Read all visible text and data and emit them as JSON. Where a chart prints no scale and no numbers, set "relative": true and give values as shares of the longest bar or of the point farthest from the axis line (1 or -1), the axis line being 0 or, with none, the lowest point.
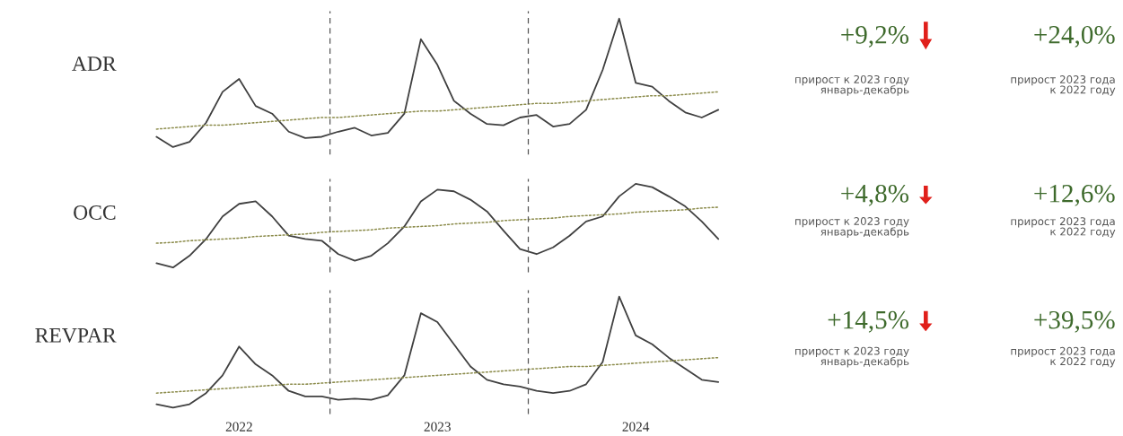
{
  "chart_data": [
    {
      "type": "line",
      "title": "ADR",
      "relative": true,
      "categories": [
        null,
        null,
        null,
        null,
        null,
        null,
        null,
        null,
        null,
        null,
        null,
        null,
        null,
        null,
        null,
        null,
        null,
        null,
        null,
        null,
        null,
        null,
        null,
        null,
        null,
        null,
        null,
        null,
        null,
        null,
        null,
        null,
        null,
        null,
        null
      ],
      "series": [
        {
          "color": "#404040",
          "line_style": "solid",
          "values": [
            0.08,
            0,
            0.04,
            0.19,
            0.43,
            0.53,
            0.32,
            0.26,
            0.12,
            0.07,
            0.08,
            0.12,
            0.15,
            0.09,
            0.11,
            0.26,
            0.84,
            0.64,
            0.36,
            0.26,
            0.18,
            0.17,
            0.23,
            0.25,
            0.16,
            0.18,
            0.29,
            0.6,
            1,
            0.5,
            0.47,
            0.36,
            0.27,
            0.23,
            0.29
          ]
        },
        {
          "type": "line",
          "color": "#8c8c4c",
          "line_style": "dotted",
          "values": [
            0.14,
            0.15,
            0.16,
            0.17,
            0.17,
            0.18,
            0.19,
            0.2,
            0.21,
            0.22,
            0.23,
            0.23,
            0.24,
            0.25,
            0.26,
            0.27,
            0.28,
            0.28,
            0.29,
            0.3,
            0.31,
            0.32,
            0.33,
            0.34,
            0.34,
            0.35,
            0.36,
            0.37,
            0.38,
            0.39,
            0.4,
            0.4,
            0.41,
            0.42,
            0.43
          ]
        }
      ]
    },
    {
      "type": "other",
      "annotations": [
        "+9,2%",
        "прирост к 2023 году\nянварь-декабрь",
        "+24,0%",
        "прирост 2023 года\nк 2022 году"
      ]
    },
    {
      "type": "line",
      "title": "OCC",
      "relative": true,
      "categories": [
        null,
        null,
        null,
        null,
        null,
        null,
        null,
        null,
        null,
        null,
        null,
        null,
        null,
        null,
        null,
        null,
        null,
        null,
        null,
        null,
        null,
        null,
        null,
        null,
        null,
        null,
        null,
        null,
        null,
        null,
        null,
        null,
        null,
        null,
        null
      ],
      "series": [
        {
          "color": "#404040",
          "line_style": "solid",
          "values": [
            0.05,
            0,
            0.14,
            0.34,
            0.61,
            0.76,
            0.79,
            0.61,
            0.38,
            0.34,
            0.32,
            0.16,
            0.08,
            0.14,
            0.29,
            0.49,
            0.79,
            0.93,
            0.91,
            0.81,
            0.67,
            0.44,
            0.22,
            0.16,
            0.24,
            0.38,
            0.55,
            0.61,
            0.85,
            1,
            0.96,
            0.85,
            0.73,
            0.55,
            0.34
          ]
        },
        {
          "type": "line",
          "color": "#8c8c4c",
          "line_style": "dotted",
          "values": [
            0.29,
            0.3,
            0.32,
            0.33,
            0.34,
            0.35,
            0.37,
            0.38,
            0.39,
            0.4,
            0.42,
            0.43,
            0.44,
            0.45,
            0.47,
            0.48,
            0.49,
            0.5,
            0.52,
            0.53,
            0.54,
            0.56,
            0.57,
            0.58,
            0.59,
            0.61,
            0.62,
            0.63,
            0.64,
            0.66,
            0.67,
            0.68,
            0.69,
            0.71,
            0.72
          ]
        }
      ]
    },
    {
      "type": "other",
      "annotations": [
        "+4,8%",
        "прирост к 2023 году\nянварь-декабрь",
        "+12,6%",
        "прирост 2023 года\nк 2022 году"
      ]
    },
    {
      "type": "line",
      "title": "REVPAR",
      "relative": true,
      "categories": [
        null,
        null,
        null,
        null,
        null,
        "2022",
        null,
        null,
        null,
        null,
        null,
        null,
        null,
        null,
        null,
        null,
        null,
        "2023",
        null,
        null,
        null,
        null,
        null,
        null,
        null,
        null,
        null,
        null,
        null,
        "2024",
        null,
        null,
        null,
        null,
        null
      ],
      "series": [
        {
          "color": "#404040",
          "line_style": "solid",
          "values": [
            0.03,
            0,
            0.03,
            0.13,
            0.29,
            0.55,
            0.39,
            0.29,
            0.15,
            0.1,
            0.1,
            0.07,
            0.08,
            0.07,
            0.11,
            0.29,
            0.85,
            0.77,
            0.57,
            0.37,
            0.25,
            0.21,
            0.19,
            0.15,
            0.13,
            0.15,
            0.21,
            0.41,
            1,
            0.65,
            0.57,
            0.45,
            0.35,
            0.25,
            0.23
          ]
        },
        {
          "type": "line",
          "color": "#8c8c4c",
          "line_style": "dotted",
          "values": [
            0.13,
            0.14,
            0.15,
            0.16,
            0.17,
            0.18,
            0.19,
            0.2,
            0.21,
            0.21,
            0.22,
            0.23,
            0.24,
            0.25,
            0.26,
            0.27,
            0.28,
            0.29,
            0.3,
            0.31,
            0.32,
            0.33,
            0.34,
            0.35,
            0.36,
            0.37,
            0.37,
            0.38,
            0.39,
            0.4,
            0.41,
            0.42,
            0.43,
            0.44,
            0.45
          ]
        }
      ]
    },
    {
      "type": "other",
      "annotations": [
        "+14,5%",
        "прирост к 2023 году\nянварь-декабрь",
        "+39,5%",
        "прирост 2023 года\nк 2022 году"
      ]
    }
  ]
}
